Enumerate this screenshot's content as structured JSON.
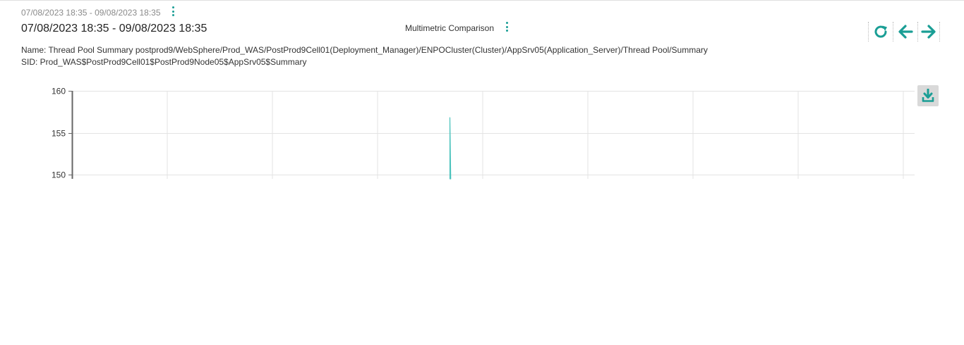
{
  "header": {
    "sub_range": "07/08/2023 18:35 - 09/08/2023 18:35",
    "main_range": "07/08/2023 18:35 - 09/08/2023 18:35",
    "comparison_label": "Multimetric Comparison"
  },
  "info": {
    "name_line": "Name: Thread Pool Summary postprod9/WebSphere/Prod_WAS/PostProd9Cell01(Deployment_Manager)/ENPOCluster(Cluster)/AppSrv05(Application_Server)/Thread Pool/Summary",
    "sid_line": "SID: Prod_WAS$PostProd9Cell01$PostProd9Node05$AppSrv05$Summary"
  },
  "toolbar": {
    "refresh_icon": "refresh-icon",
    "back_icon": "arrow-left-icon",
    "forward_icon": "arrow-right-icon",
    "download_icon": "download-icon"
  },
  "colors": {
    "accent": "#1a9e95",
    "series": "#4cc3bd",
    "grid": "#e3e3e3",
    "axis": "#666666"
  },
  "chart_data": {
    "type": "line",
    "title": "",
    "xlabel": "",
    "ylabel": "",
    "ylim": [
      149.5,
      160
    ],
    "y_ticks": [
      160,
      155,
      150
    ],
    "x_gridlines": 8,
    "grid": true,
    "series": [
      {
        "values": [
          {
            "x": 0.4485,
            "y": 149.5
          },
          {
            "x": 0.4485,
            "y": 156.8
          },
          {
            "x": 0.4495,
            "y": 149.5
          }
        ]
      }
    ]
  }
}
